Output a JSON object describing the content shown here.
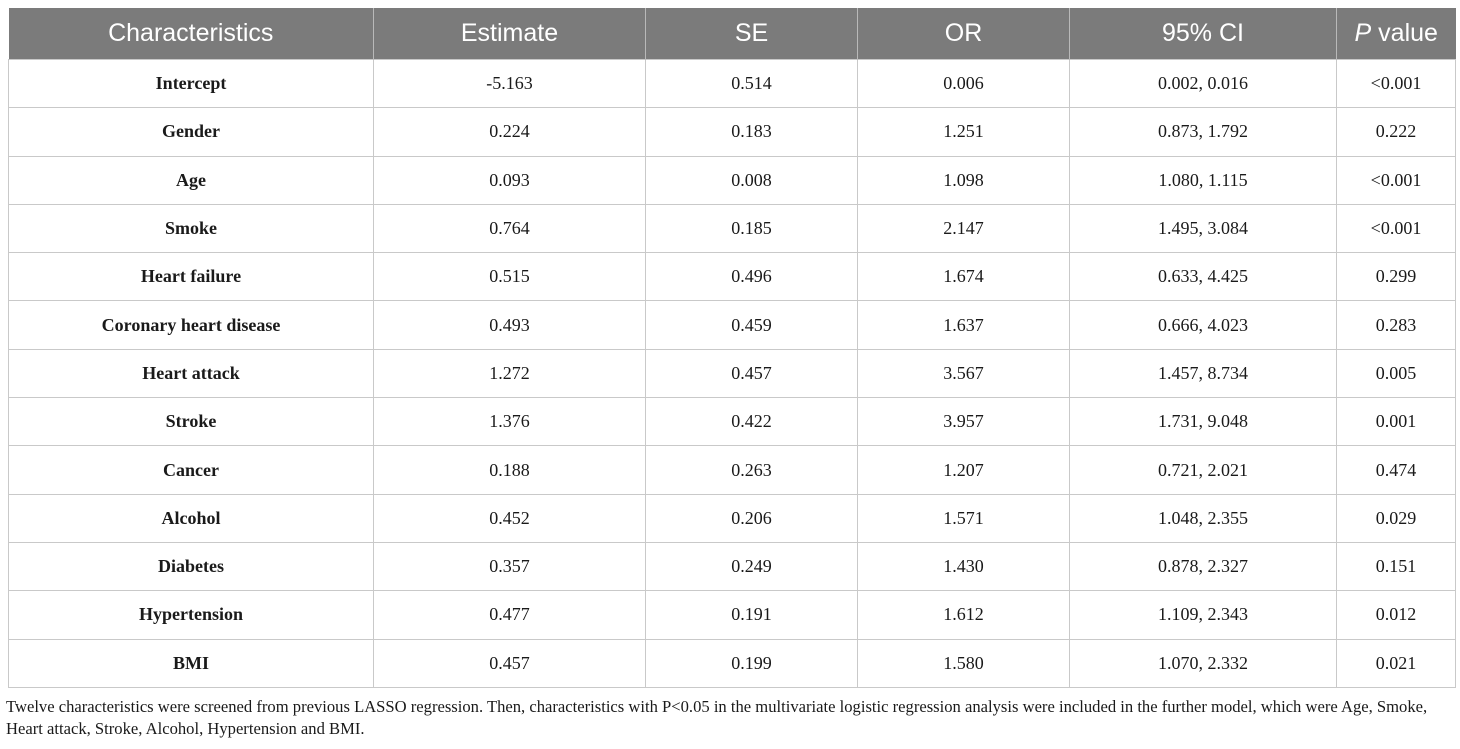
{
  "table": {
    "headers": {
      "characteristics": "Characteristics",
      "estimate": "Estimate",
      "se": "SE",
      "or": "OR",
      "ci": "95% CI",
      "p_italic": "P",
      "p_rest": " value"
    },
    "rows": [
      {
        "name": "Intercept",
        "estimate": "-5.163",
        "se": "0.514",
        "or": "0.006",
        "ci": "0.002, 0.016",
        "p": "<0.001"
      },
      {
        "name": "Gender",
        "estimate": "0.224",
        "se": "0.183",
        "or": "1.251",
        "ci": "0.873, 1.792",
        "p": "0.222"
      },
      {
        "name": "Age",
        "estimate": "0.093",
        "se": "0.008",
        "or": "1.098",
        "ci": "1.080, 1.115",
        "p": "<0.001"
      },
      {
        "name": "Smoke",
        "estimate": "0.764",
        "se": "0.185",
        "or": "2.147",
        "ci": "1.495, 3.084",
        "p": "<0.001"
      },
      {
        "name": "Heart failure",
        "estimate": "0.515",
        "se": "0.496",
        "or": "1.674",
        "ci": "0.633, 4.425",
        "p": "0.299"
      },
      {
        "name": "Coronary heart disease",
        "estimate": "0.493",
        "se": "0.459",
        "or": "1.637",
        "ci": "0.666, 4.023",
        "p": "0.283"
      },
      {
        "name": "Heart attack",
        "estimate": "1.272",
        "se": "0.457",
        "or": "3.567",
        "ci": "1.457, 8.734",
        "p": "0.005"
      },
      {
        "name": "Stroke",
        "estimate": "1.376",
        "se": "0.422",
        "or": "3.957",
        "ci": "1.731, 9.048",
        "p": "0.001"
      },
      {
        "name": "Cancer",
        "estimate": "0.188",
        "se": "0.263",
        "or": "1.207",
        "ci": "0.721, 2.021",
        "p": "0.474"
      },
      {
        "name": "Alcohol",
        "estimate": "0.452",
        "se": "0.206",
        "or": "1.571",
        "ci": "1.048, 2.355",
        "p": "0.029"
      },
      {
        "name": "Diabetes",
        "estimate": "0.357",
        "se": "0.249",
        "or": "1.430",
        "ci": "0.878, 2.327",
        "p": "0.151"
      },
      {
        "name": "Hypertension",
        "estimate": "0.477",
        "se": "0.191",
        "or": "1.612",
        "ci": "1.109, 2.343",
        "p": "0.012"
      },
      {
        "name": "BMI",
        "estimate": "0.457",
        "se": "0.199",
        "or": "1.580",
        "ci": "1.070, 2.332",
        "p": "0.021"
      }
    ]
  },
  "footnote": "Twelve characteristics were screened from previous LASSO regression. Then, characteristics with P<0.05 in the multivariate logistic regression analysis were included in the further model, which were Age, Smoke, Heart attack, Stroke, Alcohol, Hypertension and BMI.",
  "colors": {
    "header_bg": "#7b7b7b",
    "header_text": "#ffffff",
    "grid_line": "#c9c9c9"
  }
}
